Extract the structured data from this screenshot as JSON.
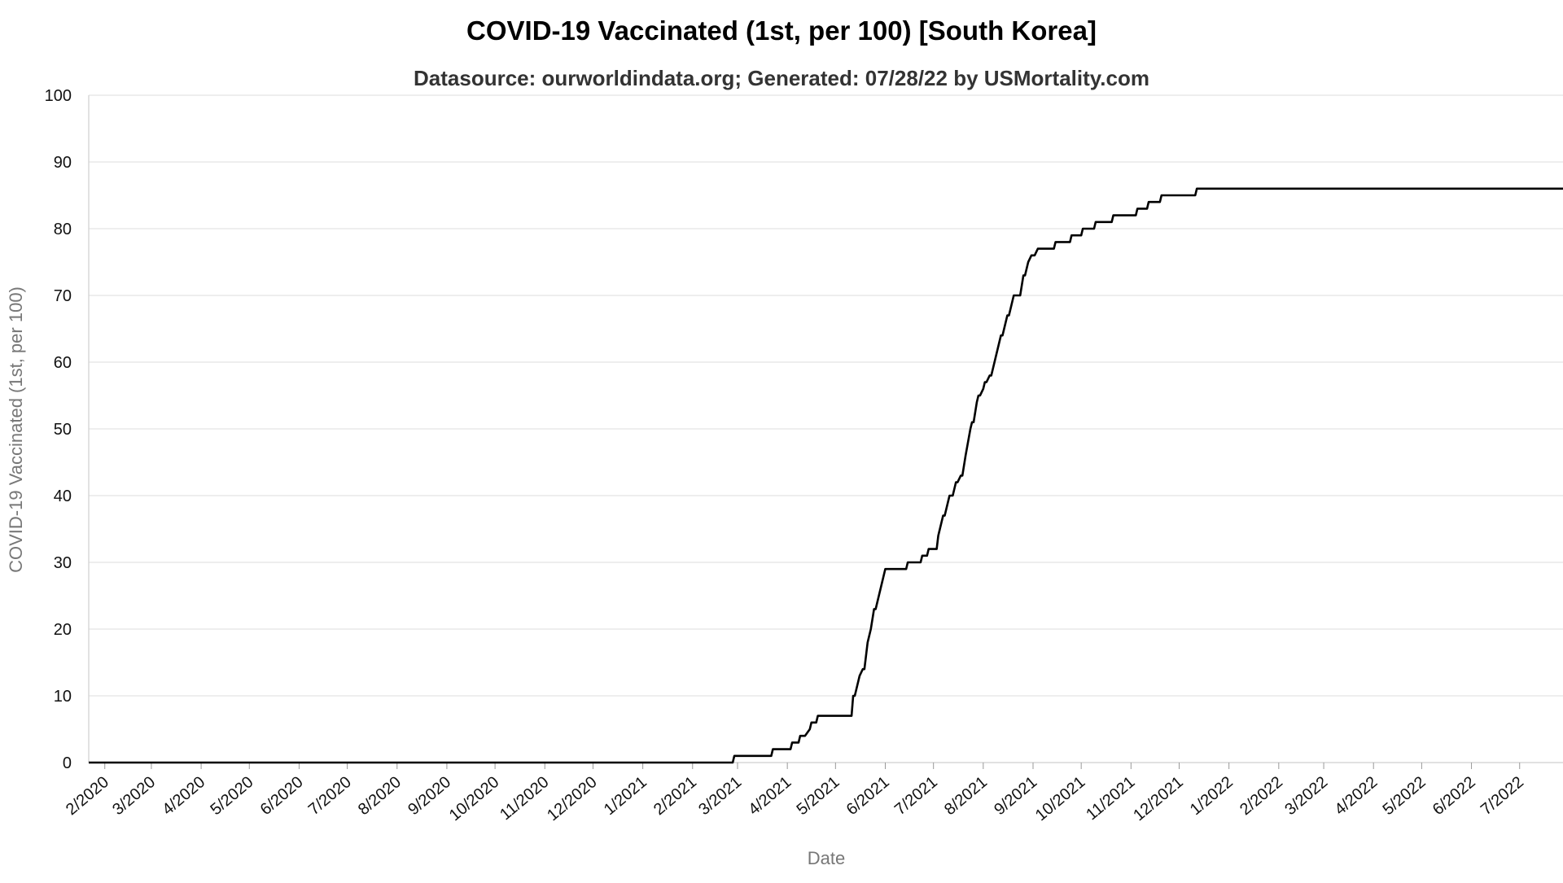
{
  "chart_data": {
    "type": "line",
    "title": "COVID-19 Vaccinated (1st, per 100) [South Korea]",
    "subtitle": "Datasource: ourworldindata.org; Generated: 07/28/22 by USMortality.com",
    "xlabel": "Date",
    "ylabel": "COVID-19 Vaccinated (1st, per 100)",
    "ylim": [
      0,
      100
    ],
    "yticks": [
      0,
      10,
      20,
      30,
      40,
      50,
      60,
      70,
      80,
      90,
      100
    ],
    "xlim": [
      "2020-01-22",
      "2022-07-28"
    ],
    "xtick_labels": [
      "2/2020",
      "3/2020",
      "4/2020",
      "5/2020",
      "6/2020",
      "7/2020",
      "8/2020",
      "9/2020",
      "10/2020",
      "11/2020",
      "12/2020",
      "1/2021",
      "2/2021",
      "3/2021",
      "4/2021",
      "5/2021",
      "6/2021",
      "7/2021",
      "8/2021",
      "9/2021",
      "10/2021",
      "11/2021",
      "12/2021",
      "1/2022",
      "2/2022",
      "3/2022",
      "4/2022",
      "5/2022",
      "6/2022",
      "7/2022"
    ],
    "grid": true,
    "line_color": "#000000",
    "series": [
      {
        "points": [
          [
            "2020-01-22",
            0
          ],
          [
            "2021-02-26",
            0
          ],
          [
            "2021-02-27",
            1
          ],
          [
            "2021-03-22",
            1
          ],
          [
            "2021-03-23",
            2
          ],
          [
            "2021-04-03",
            2
          ],
          [
            "2021-04-04",
            3
          ],
          [
            "2021-04-08",
            3
          ],
          [
            "2021-04-09",
            4
          ],
          [
            "2021-04-12",
            4
          ],
          [
            "2021-04-15",
            5
          ],
          [
            "2021-04-16",
            6
          ],
          [
            "2021-04-19",
            6
          ],
          [
            "2021-04-20",
            7
          ],
          [
            "2021-05-11",
            7
          ],
          [
            "2021-05-12",
            10
          ],
          [
            "2021-05-13",
            10
          ],
          [
            "2021-05-16",
            13
          ],
          [
            "2021-05-18",
            14
          ],
          [
            "2021-05-19",
            14
          ],
          [
            "2021-05-21",
            18
          ],
          [
            "2021-05-23",
            20
          ],
          [
            "2021-05-25",
            23
          ],
          [
            "2021-05-26",
            23
          ],
          [
            "2021-06-01",
            29
          ],
          [
            "2021-06-14",
            29
          ],
          [
            "2021-06-15",
            30
          ],
          [
            "2021-06-23",
            30
          ],
          [
            "2021-06-24",
            31
          ],
          [
            "2021-06-27",
            31
          ],
          [
            "2021-06-28",
            32
          ],
          [
            "2021-07-03",
            32
          ],
          [
            "2021-07-04",
            34
          ],
          [
            "2021-07-07",
            37
          ],
          [
            "2021-07-08",
            37
          ],
          [
            "2021-07-10",
            39
          ],
          [
            "2021-07-11",
            40
          ],
          [
            "2021-07-13",
            40
          ],
          [
            "2021-07-15",
            42
          ],
          [
            "2021-07-16",
            42
          ],
          [
            "2021-07-18",
            43
          ],
          [
            "2021-07-19",
            43
          ],
          [
            "2021-07-21",
            46
          ],
          [
            "2021-07-24",
            50
          ],
          [
            "2021-07-25",
            51
          ],
          [
            "2021-07-26",
            51
          ],
          [
            "2021-07-28",
            54
          ],
          [
            "2021-07-29",
            55
          ],
          [
            "2021-07-30",
            55
          ],
          [
            "2021-08-01",
            56
          ],
          [
            "2021-08-02",
            57
          ],
          [
            "2021-08-03",
            57
          ],
          [
            "2021-08-05",
            58
          ],
          [
            "2021-08-06",
            58
          ],
          [
            "2021-08-12",
            64
          ],
          [
            "2021-08-13",
            64
          ],
          [
            "2021-08-16",
            67
          ],
          [
            "2021-08-17",
            67
          ],
          [
            "2021-08-20",
            70
          ],
          [
            "2021-08-24",
            70
          ],
          [
            "2021-08-26",
            73
          ],
          [
            "2021-08-27",
            73
          ],
          [
            "2021-08-29",
            75
          ],
          [
            "2021-08-31",
            76
          ],
          [
            "2021-09-02",
            76
          ],
          [
            "2021-09-04",
            77
          ],
          [
            "2021-09-14",
            77
          ],
          [
            "2021-09-15",
            78
          ],
          [
            "2021-09-24",
            78
          ],
          [
            "2021-09-25",
            79
          ],
          [
            "2021-10-01",
            79
          ],
          [
            "2021-10-02",
            80
          ],
          [
            "2021-10-09",
            80
          ],
          [
            "2021-10-10",
            81
          ],
          [
            "2021-10-20",
            81
          ],
          [
            "2021-10-21",
            82
          ],
          [
            "2021-11-04",
            82
          ],
          [
            "2021-11-05",
            83
          ],
          [
            "2021-11-11",
            83
          ],
          [
            "2021-11-12",
            84
          ],
          [
            "2021-11-19",
            84
          ],
          [
            "2021-11-20",
            85
          ],
          [
            "2021-12-11",
            85
          ],
          [
            "2021-12-12",
            86
          ],
          [
            "2022-07-28",
            86
          ]
        ]
      }
    ]
  }
}
